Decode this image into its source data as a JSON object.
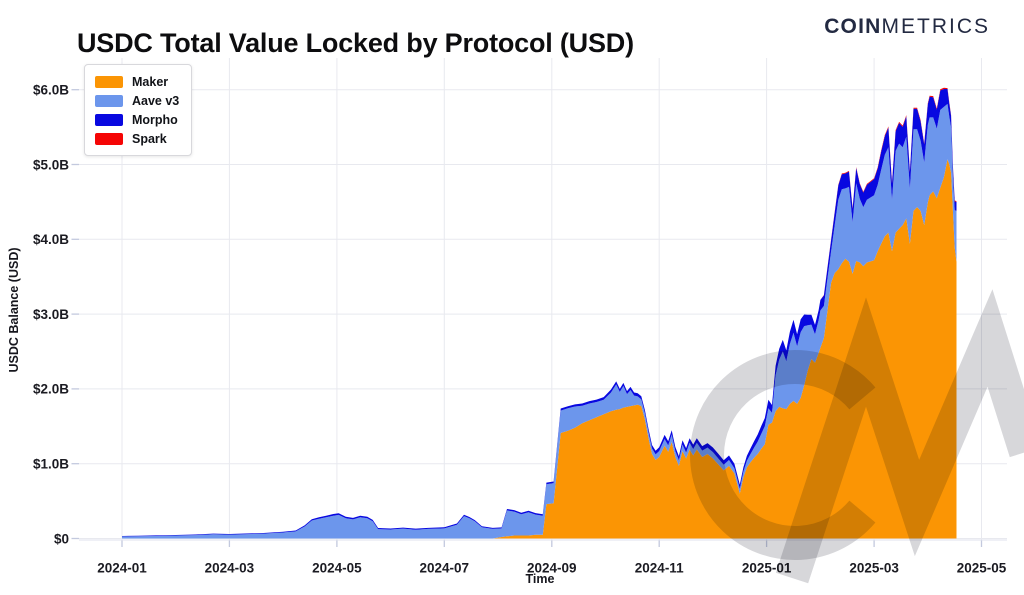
{
  "header": {
    "title": "USDC Total Value Locked by Protocol (USD)",
    "logo_bold": "COIN",
    "logo_light": "METRICS"
  },
  "colors": {
    "background": "#FFFFFF",
    "grid": "#E8E9EF",
    "tick_stub": "#C3C9DE",
    "tick_text": "#1B1B22",
    "title_text": "#0D0D0F",
    "logo_text": "#232A42",
    "watermark": "#D7D7DA"
  },
  "watermark": {
    "icon": "coinmetrics-cm-monogram-icon"
  },
  "chart_data": {
    "type": "area",
    "stacked": true,
    "title": "USDC Total Value Locked by Protocol (USD)",
    "xlabel": "Time",
    "ylabel": "USDC Balance (USD)",
    "grid": true,
    "legend_position": "top-left",
    "units": "billions USD",
    "ylim": [
      0,
      6.42
    ],
    "x_range": [
      "2024-01",
      "2025-05"
    ],
    "y_ticks": [
      "$0",
      "$1.0B",
      "$2.0B",
      "$3.0B",
      "$4.0B",
      "$5.0B",
      "$6.0B"
    ],
    "x_ticks": [
      "2024-01",
      "2024-03",
      "2024-05",
      "2024-07",
      "2024-09",
      "2024-11",
      "2025-01",
      "2025-03",
      "2025-05"
    ],
    "series": [
      {
        "name": "Maker",
        "color": "#FB9504"
      },
      {
        "name": "Aave v3",
        "color": "#6C96EC"
      },
      {
        "name": "Morpho",
        "color": "#0808E0"
      },
      {
        "name": "Spark",
        "color": "#F50505"
      }
    ],
    "point_format": [
      "date",
      "Maker",
      "Aave v3",
      "Morpho",
      "Spark"
    ],
    "points": [
      [
        "2024-01-01",
        0,
        0.028,
        0.006,
        0
      ],
      [
        "2024-01-10",
        0,
        0.031,
        0.006,
        0
      ],
      [
        "2024-01-20",
        0,
        0.034,
        0.007,
        0
      ],
      [
        "2024-02-01",
        0,
        0.04,
        0.007,
        0
      ],
      [
        "2024-02-12",
        0,
        0.046,
        0.008,
        0
      ],
      [
        "2024-02-22",
        0,
        0.058,
        0.008,
        0
      ],
      [
        "2024-03-01",
        0,
        0.052,
        0.008,
        0
      ],
      [
        "2024-03-10",
        0,
        0.058,
        0.009,
        0
      ],
      [
        "2024-03-20",
        0,
        0.065,
        0.009,
        0
      ],
      [
        "2024-04-01",
        0,
        0.08,
        0.01,
        0
      ],
      [
        "2024-04-08",
        0,
        0.095,
        0.012,
        0
      ],
      [
        "2024-04-13",
        0,
        0.16,
        0.015,
        0
      ],
      [
        "2024-04-17",
        0,
        0.24,
        0.018,
        0
      ],
      [
        "2024-04-21",
        0,
        0.265,
        0.02,
        0
      ],
      [
        "2024-04-25",
        0,
        0.285,
        0.02,
        0
      ],
      [
        "2024-04-29",
        0,
        0.305,
        0.022,
        0
      ],
      [
        "2024-05-02",
        0,
        0.315,
        0.022,
        0
      ],
      [
        "2024-05-06",
        0,
        0.27,
        0.02,
        0
      ],
      [
        "2024-05-10",
        0,
        0.255,
        0.02,
        0
      ],
      [
        "2024-05-14",
        0,
        0.285,
        0.02,
        0
      ],
      [
        "2024-05-18",
        0,
        0.27,
        0.02,
        0
      ],
      [
        "2024-05-21",
        0,
        0.23,
        0.018,
        0
      ],
      [
        "2024-05-24",
        0,
        0.125,
        0.015,
        0
      ],
      [
        "2024-06-01",
        0,
        0.12,
        0.014,
        0
      ],
      [
        "2024-06-08",
        0,
        0.132,
        0.014,
        0
      ],
      [
        "2024-06-15",
        0,
        0.118,
        0.014,
        0
      ],
      [
        "2024-06-22",
        0,
        0.128,
        0.014,
        0
      ],
      [
        "2024-07-01",
        0,
        0.135,
        0.015,
        0
      ],
      [
        "2024-07-08",
        0,
        0.185,
        0.016,
        0
      ],
      [
        "2024-07-12",
        0,
        0.3,
        0.018,
        0
      ],
      [
        "2024-07-15",
        0,
        0.27,
        0.018,
        0
      ],
      [
        "2024-07-18",
        0,
        0.23,
        0.016,
        0
      ],
      [
        "2024-07-22",
        0,
        0.15,
        0.015,
        0
      ],
      [
        "2024-07-28",
        0,
        0.128,
        0.014,
        0
      ],
      [
        "2024-08-03",
        0.02,
        0.115,
        0.014,
        0
      ],
      [
        "2024-08-06",
        0.03,
        0.345,
        0.02,
        0
      ],
      [
        "2024-08-10",
        0.04,
        0.32,
        0.02,
        0
      ],
      [
        "2024-08-14",
        0.04,
        0.285,
        0.02,
        0
      ],
      [
        "2024-08-18",
        0.04,
        0.31,
        0.02,
        0
      ],
      [
        "2024-08-22",
        0.05,
        0.27,
        0.02,
        0
      ],
      [
        "2024-08-26",
        0.05,
        0.255,
        0.02,
        0
      ],
      [
        "2024-08-28",
        0.46,
        0.265,
        0.022,
        0
      ],
      [
        "2024-09-02",
        0.47,
        0.27,
        0.022,
        0
      ],
      [
        "2024-09-06",
        1.41,
        0.3,
        0.028,
        0
      ],
      [
        "2024-09-10",
        1.44,
        0.3,
        0.028,
        0
      ],
      [
        "2024-09-14",
        1.48,
        0.285,
        0.028,
        0
      ],
      [
        "2024-09-18",
        1.54,
        0.235,
        0.03,
        0
      ],
      [
        "2024-09-22",
        1.58,
        0.225,
        0.032,
        0
      ],
      [
        "2024-09-26",
        1.62,
        0.205,
        0.032,
        0
      ],
      [
        "2024-09-30",
        1.66,
        0.195,
        0.035,
        0
      ],
      [
        "2024-10-04",
        1.7,
        0.25,
        0.04,
        0
      ],
      [
        "2024-10-07",
        1.72,
        0.34,
        0.04,
        0
      ],
      [
        "2024-10-09",
        1.73,
        0.23,
        0.04,
        0
      ],
      [
        "2024-10-11",
        1.75,
        0.29,
        0.04,
        0
      ],
      [
        "2024-10-13",
        1.76,
        0.17,
        0.04,
        0
      ],
      [
        "2024-10-15",
        1.77,
        0.215,
        0.042,
        0
      ],
      [
        "2024-10-17",
        1.78,
        0.13,
        0.042,
        0
      ],
      [
        "2024-10-19",
        1.79,
        0.11,
        0.042,
        0
      ],
      [
        "2024-10-21",
        1.77,
        0.09,
        0.042,
        0
      ],
      [
        "2024-10-23",
        1.59,
        0.085,
        0.042,
        0
      ],
      [
        "2024-10-25",
        1.34,
        0.08,
        0.045,
        0
      ],
      [
        "2024-10-27",
        1.13,
        0.075,
        0.045,
        0
      ],
      [
        "2024-10-29",
        1.05,
        0.075,
        0.048,
        0
      ],
      [
        "2024-11-01",
        1.09,
        0.08,
        0.05,
        0
      ],
      [
        "2024-11-04",
        1.24,
        0.09,
        0.055,
        0
      ],
      [
        "2024-11-06",
        1.16,
        0.085,
        0.055,
        0
      ],
      [
        "2024-11-08",
        1.29,
        0.1,
        0.058,
        0
      ],
      [
        "2024-11-10",
        1.09,
        0.08,
        0.055,
        0
      ],
      [
        "2024-11-12",
        0.97,
        0.075,
        0.055,
        0
      ],
      [
        "2024-11-14",
        1.17,
        0.085,
        0.058,
        0
      ],
      [
        "2024-11-16",
        1.07,
        0.08,
        0.058,
        0
      ],
      [
        "2024-11-18",
        1.19,
        0.09,
        0.06,
        0
      ],
      [
        "2024-11-20",
        1.11,
        0.085,
        0.06,
        0
      ],
      [
        "2024-11-22",
        1.19,
        0.09,
        0.06,
        0
      ],
      [
        "2024-11-25",
        1.09,
        0.085,
        0.06,
        0
      ],
      [
        "2024-11-28",
        1.13,
        0.085,
        0.06,
        0
      ],
      [
        "2024-12-01",
        1.07,
        0.085,
        0.062,
        0
      ],
      [
        "2024-12-04",
        0.99,
        0.08,
        0.062,
        0
      ],
      [
        "2024-12-07",
        0.91,
        0.075,
        0.06,
        0
      ],
      [
        "2024-12-10",
        0.97,
        0.08,
        0.06,
        0
      ],
      [
        "2024-12-13",
        0.87,
        0.07,
        0.058,
        0
      ],
      [
        "2024-12-16",
        0.6,
        0.065,
        0.055,
        0
      ],
      [
        "2024-12-18",
        0.82,
        0.075,
        0.058,
        0
      ],
      [
        "2024-12-20",
        0.95,
        0.09,
        0.065,
        0
      ],
      [
        "2024-12-22",
        1.02,
        0.11,
        0.075,
        0
      ],
      [
        "2024-12-24",
        1.08,
        0.135,
        0.085,
        0
      ],
      [
        "2024-12-26",
        1.13,
        0.165,
        0.095,
        0
      ],
      [
        "2024-12-28",
        1.2,
        0.2,
        0.105,
        0
      ],
      [
        "2024-12-30",
        1.26,
        0.24,
        0.11,
        0
      ],
      [
        "2025-01-02",
        1.52,
        0.22,
        0.115,
        0
      ],
      [
        "2025-01-04",
        1.55,
        0.13,
        0.105,
        0
      ],
      [
        "2025-01-06",
        1.7,
        0.48,
        0.13,
        0
      ],
      [
        "2025-01-08",
        1.76,
        0.63,
        0.145,
        0
      ],
      [
        "2025-01-10",
        1.74,
        0.76,
        0.155,
        0
      ],
      [
        "2025-01-12",
        1.73,
        0.64,
        0.145,
        0
      ],
      [
        "2025-01-14",
        1.8,
        0.8,
        0.165,
        0
      ],
      [
        "2025-01-16",
        1.84,
        0.91,
        0.175,
        0
      ],
      [
        "2025-01-18",
        1.8,
        0.77,
        0.16,
        0
      ],
      [
        "2025-01-20",
        1.88,
        0.88,
        0.17,
        0
      ],
      [
        "2025-01-22",
        2.05,
        0.79,
        0.155,
        0
      ],
      [
        "2025-01-24",
        2.25,
        0.6,
        0.14,
        0
      ],
      [
        "2025-01-26",
        2.4,
        0.46,
        0.13,
        0
      ],
      [
        "2025-01-28",
        2.35,
        0.38,
        0.125,
        0
      ],
      [
        "2025-01-30",
        2.48,
        0.44,
        0.13,
        0
      ],
      [
        "2025-02-01",
        2.55,
        0.5,
        0.14,
        0
      ],
      [
        "2025-02-03",
        2.68,
        0.43,
        0.14,
        0.005
      ],
      [
        "2025-02-05",
        3.05,
        0.43,
        0.145,
        0.005
      ],
      [
        "2025-02-07",
        3.42,
        0.42,
        0.15,
        0.008
      ],
      [
        "2025-02-09",
        3.55,
        0.64,
        0.17,
        0.008
      ],
      [
        "2025-02-11",
        3.6,
        0.93,
        0.19,
        0.008
      ],
      [
        "2025-02-13",
        3.68,
        0.99,
        0.2,
        0.01
      ],
      [
        "2025-02-15",
        3.74,
        0.94,
        0.2,
        0.01
      ],
      [
        "2025-02-17",
        3.7,
        1.0,
        0.205,
        0.01
      ],
      [
        "2025-02-19",
        3.54,
        0.69,
        0.18,
        0.01
      ],
      [
        "2025-02-21",
        3.71,
        1.04,
        0.205,
        0.01
      ],
      [
        "2025-02-23",
        3.69,
        0.85,
        0.2,
        0.01
      ],
      [
        "2025-02-25",
        3.64,
        0.79,
        0.195,
        0.01
      ],
      [
        "2025-02-27",
        3.69,
        0.84,
        0.2,
        0.01
      ],
      [
        "2025-03-01",
        3.72,
        0.87,
        0.215,
        0.012
      ],
      [
        "2025-03-03",
        3.84,
        0.89,
        0.22,
        0.012
      ],
      [
        "2025-03-05",
        3.94,
        0.99,
        0.245,
        0.015
      ],
      [
        "2025-03-07",
        4.04,
        1.09,
        0.25,
        0.015
      ],
      [
        "2025-03-09",
        4.09,
        1.14,
        0.265,
        0.015
      ],
      [
        "2025-03-11",
        3.84,
        0.69,
        0.22,
        0.015
      ],
      [
        "2025-03-13",
        4.09,
        1.09,
        0.265,
        0.015
      ],
      [
        "2025-03-15",
        4.14,
        1.14,
        0.275,
        0.015
      ],
      [
        "2025-03-17",
        4.19,
        1.04,
        0.275,
        0.015
      ],
      [
        "2025-03-19",
        4.28,
        1.09,
        0.275,
        0.015
      ],
      [
        "2025-03-21",
        3.94,
        0.74,
        0.22,
        0.015
      ],
      [
        "2025-03-23",
        4.38,
        1.09,
        0.275,
        0.015
      ],
      [
        "2025-03-25",
        4.43,
        1.04,
        0.275,
        0.015
      ],
      [
        "2025-03-27",
        4.38,
        0.94,
        0.26,
        0.015
      ],
      [
        "2025-03-29",
        4.19,
        0.84,
        0.24,
        0.015
      ],
      [
        "2025-03-31",
        4.49,
        1.04,
        0.275,
        0.015
      ],
      [
        "2025-04-02",
        4.59,
        1.04,
        0.275,
        0.015
      ],
      [
        "2025-04-04",
        4.64,
        0.99,
        0.27,
        0.015
      ],
      [
        "2025-04-06",
        4.55,
        0.93,
        0.255,
        0.015
      ],
      [
        "2025-04-08",
        4.69,
        1.04,
        0.26,
        0.015
      ],
      [
        "2025-04-10",
        4.83,
        0.94,
        0.24,
        0.015
      ],
      [
        "2025-04-12",
        5.07,
        0.74,
        0.2,
        0.012
      ],
      [
        "2025-04-13",
        5.0,
        0.64,
        0.18,
        0.012
      ],
      [
        "2025-04-14",
        4.89,
        0.6,
        0.16,
        0.01
      ],
      [
        "2025-04-15",
        4.39,
        0.45,
        0.14,
        0.01
      ],
      [
        "2025-04-16",
        3.89,
        0.5,
        0.12,
        0.01
      ],
      [
        "2025-04-17",
        3.7,
        0.68,
        0.12,
        0.01
      ]
    ]
  }
}
